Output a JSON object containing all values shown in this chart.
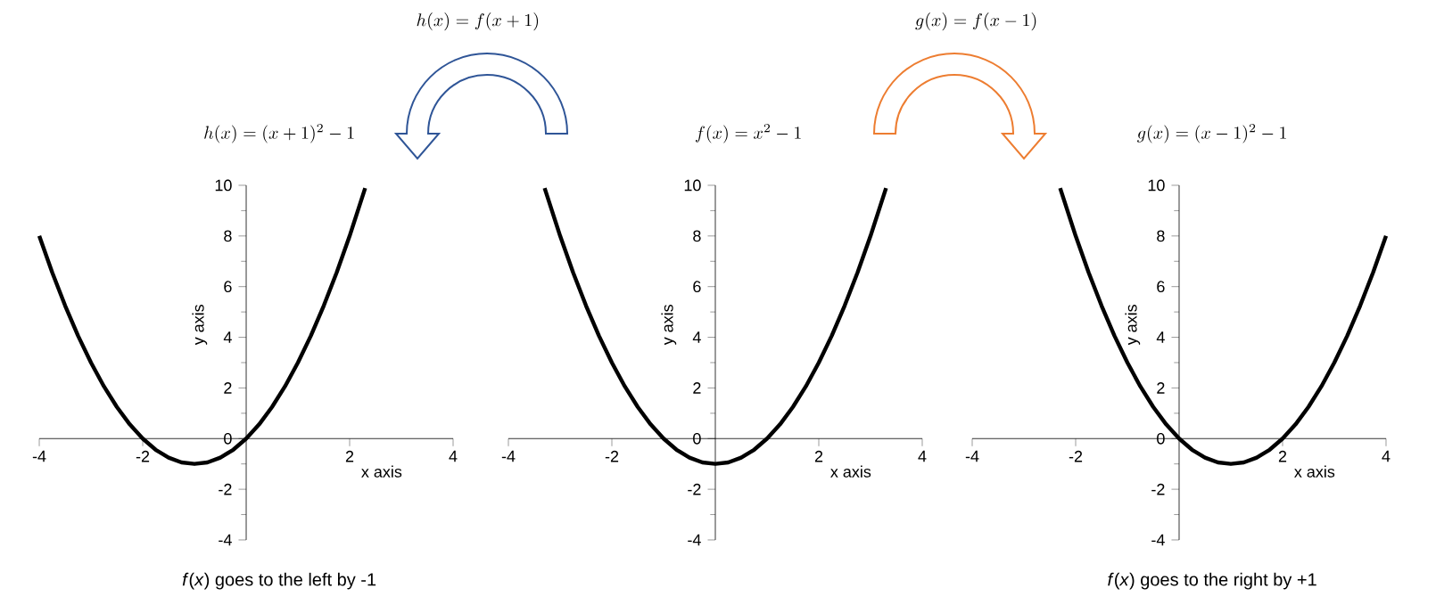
{
  "chart_data": [
    {
      "type": "line",
      "title": "h(x) = (x+1)^{2} - 1",
      "xlabel": "x axis",
      "ylabel": "y axis",
      "xlim": [
        -4,
        4
      ],
      "ylim": [
        -4,
        10
      ],
      "xticks": [
        -4,
        -2,
        2,
        4
      ],
      "yticks": [
        -4,
        -2,
        0,
        2,
        4,
        6,
        8,
        10
      ],
      "annotations": [
        "h(x) = f(x+1)",
        "*f*(*x*) goes to the left by -1"
      ],
      "series": [
        {
          "color": "#000000",
          "x": [
            -4,
            -3.75,
            -3.5,
            -3.25,
            -3,
            -2.75,
            -2.5,
            -2.25,
            -2,
            -1.75,
            -1.5,
            -1.25,
            -1,
            -0.75,
            -0.5,
            -0.25,
            0,
            0.25,
            0.5,
            0.75,
            1,
            1.25,
            1.5,
            1.75,
            2,
            2.3
          ],
          "values": [
            8,
            6.56,
            5.25,
            4.06,
            3,
            2.06,
            1.25,
            0.56,
            0,
            -0.44,
            -0.75,
            -0.94,
            -1,
            -0.94,
            -0.75,
            -0.44,
            0,
            0.56,
            1.25,
            2.06,
            3,
            4.06,
            5.25,
            6.56,
            8,
            9.89
          ]
        }
      ]
    },
    {
      "type": "line",
      "title": "f(x) = x^{2} - 1",
      "xlabel": "x axis",
      "ylabel": "y axis",
      "xlim": [
        -4,
        4
      ],
      "ylim": [
        -4,
        10
      ],
      "xticks": [
        -4,
        -2,
        2,
        4
      ],
      "yticks": [
        -4,
        -2,
        0,
        2,
        4,
        6,
        8,
        10
      ],
      "series": [
        {
          "color": "#000000",
          "x": [
            -3.3,
            -3,
            -2.75,
            -2.5,
            -2.25,
            -2,
            -1.75,
            -1.5,
            -1.25,
            -1,
            -0.75,
            -0.5,
            -0.25,
            0,
            0.25,
            0.5,
            0.75,
            1,
            1.25,
            1.5,
            1.75,
            2,
            2.25,
            2.5,
            2.75,
            3,
            3.3
          ],
          "values": [
            9.89,
            8,
            6.56,
            5.25,
            4.06,
            3,
            2.06,
            1.25,
            0.56,
            0,
            -0.44,
            -0.75,
            -0.94,
            -1,
            -0.94,
            -0.75,
            -0.44,
            0,
            0.56,
            1.25,
            2.06,
            3,
            4.06,
            5.25,
            6.56,
            8,
            9.89
          ]
        }
      ]
    },
    {
      "type": "line",
      "title": "g(x) = (x-1)^{2} - 1",
      "xlabel": "x axis",
      "ylabel": "y axis",
      "xlim": [
        -4,
        4
      ],
      "ylim": [
        -4,
        10
      ],
      "xticks": [
        -4,
        -2,
        2,
        4
      ],
      "yticks": [
        -4,
        -2,
        0,
        2,
        4,
        6,
        8,
        10
      ],
      "annotations": [
        "g(x) = f(x-1)",
        "*f*(*x*) goes to the right by +1"
      ],
      "series": [
        {
          "color": "#000000",
          "x": [
            -2.3,
            -2,
            -1.75,
            -1.5,
            -1.25,
            -1,
            -0.75,
            -0.5,
            -0.25,
            0,
            0.25,
            0.5,
            0.75,
            1,
            1.25,
            1.5,
            1.75,
            2,
            2.25,
            2.5,
            2.75,
            3,
            3.25,
            3.5,
            3.75,
            4
          ],
          "values": [
            9.89,
            8,
            6.56,
            5.25,
            4.06,
            3,
            2.06,
            1.25,
            0.56,
            0,
            -0.44,
            -0.75,
            -0.94,
            -1,
            -0.94,
            -0.75,
            -0.44,
            0,
            0.56,
            1.25,
            2.06,
            3,
            4.06,
            5.25,
            6.56,
            8
          ]
        }
      ]
    }
  ]
}
